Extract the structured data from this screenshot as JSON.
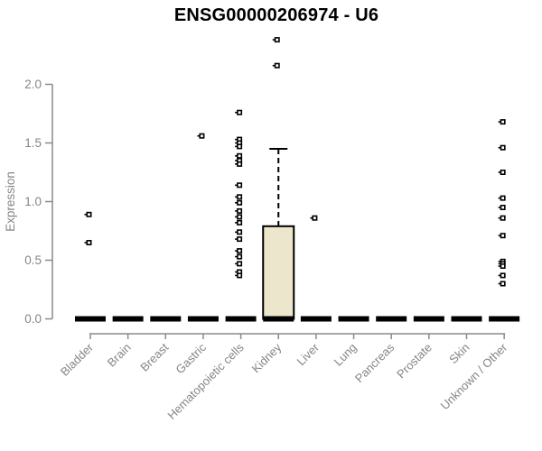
{
  "colors": {
    "title_text": "#000000",
    "axis_line": "#8a8a8a",
    "axis_text": "#858585",
    "box_fill": "#ECE7CC",
    "box_stroke": "#000000",
    "outlier_stroke": "#000000",
    "background": "#ffffff"
  },
  "chart_data": {
    "type": "boxplot",
    "title": "ENSG00000206974 - U6",
    "xlabel": "",
    "ylabel": "Expression",
    "ylim": [
      0,
      2.4
    ],
    "yticks": [
      0.0,
      0.5,
      1.0,
      1.5,
      2.0
    ],
    "grid": false,
    "legend": "none",
    "categories": [
      "Bladder",
      "Brain",
      "Breast",
      "Gastric",
      "Hematopoietic cells",
      "Kidney",
      "Liver",
      "Lung",
      "Pancreas",
      "Prostate",
      "Skin",
      "Unknown / Other"
    ],
    "series": [
      {
        "category": "Bladder",
        "q1": 0,
        "median": 0,
        "q3": 0,
        "whisker_low": 0,
        "whisker_high": 0,
        "outliers": [
          0.89,
          0.65
        ]
      },
      {
        "category": "Brain",
        "q1": 0,
        "median": 0,
        "q3": 0,
        "whisker_low": 0,
        "whisker_high": 0,
        "outliers": []
      },
      {
        "category": "Breast",
        "q1": 0,
        "median": 0,
        "q3": 0,
        "whisker_low": 0,
        "whisker_high": 0,
        "outliers": []
      },
      {
        "category": "Gastric",
        "q1": 0,
        "median": 0,
        "q3": 0,
        "whisker_low": 0,
        "whisker_high": 0,
        "outliers": [
          1.56
        ]
      },
      {
        "category": "Hematopoietic cells",
        "q1": 0,
        "median": 0,
        "q3": 0,
        "whisker_low": 0,
        "whisker_high": 0,
        "outliers": [
          1.76,
          1.53,
          1.5,
          1.47,
          1.39,
          1.35,
          1.32,
          1.14,
          1.04,
          0.99,
          0.92,
          0.87,
          0.82,
          0.74,
          0.68,
          0.58,
          0.53,
          0.47,
          0.4,
          0.37
        ]
      },
      {
        "category": "Kidney",
        "q1": 0,
        "median": 0,
        "q3": 0.79,
        "whisker_low": 0,
        "whisker_high": 1.45,
        "outliers": [
          2.38,
          2.16
        ]
      },
      {
        "category": "Liver",
        "q1": 0,
        "median": 0,
        "q3": 0,
        "whisker_low": 0,
        "whisker_high": 0,
        "outliers": [
          0.86
        ]
      },
      {
        "category": "Lung",
        "q1": 0,
        "median": 0,
        "q3": 0,
        "whisker_low": 0,
        "whisker_high": 0,
        "outliers": []
      },
      {
        "category": "Pancreas",
        "q1": 0,
        "median": 0,
        "q3": 0,
        "whisker_low": 0,
        "whisker_high": 0,
        "outliers": []
      },
      {
        "category": "Prostate",
        "q1": 0,
        "median": 0,
        "q3": 0,
        "whisker_low": 0,
        "whisker_high": 0,
        "outliers": []
      },
      {
        "category": "Skin",
        "q1": 0,
        "median": 0,
        "q3": 0,
        "whisker_low": 0,
        "whisker_high": 0,
        "outliers": []
      },
      {
        "category": "Unknown / Other",
        "q1": 0,
        "median": 0,
        "q3": 0,
        "whisker_low": 0,
        "whisker_high": 0,
        "outliers": [
          1.68,
          1.46,
          1.25,
          1.03,
          0.95,
          0.86,
          0.71,
          0.49,
          0.47,
          0.45,
          0.37,
          0.3
        ]
      }
    ]
  }
}
